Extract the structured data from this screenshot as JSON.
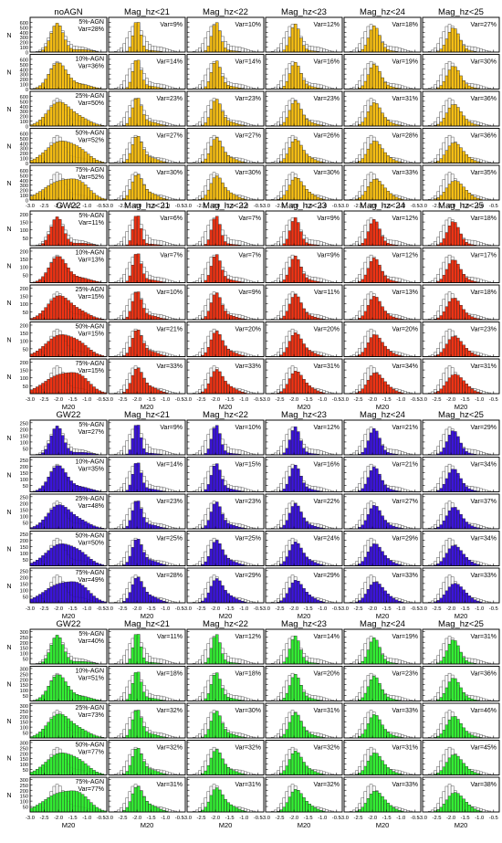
{
  "figure": {
    "y_label": "N",
    "x_label": "M20",
    "x_ticks": [
      "-3.0",
      "-2.5",
      "-2.0",
      "-1.5",
      "-1.0",
      "-0.5"
    ],
    "column_titles": [
      "Mag_hz<21",
      "Mag_hz<22",
      "Mag_hz<23",
      "Mag_hz<24",
      "Mag_hz<25"
    ],
    "row_labels": [
      "5%-AGN",
      "10%-AGN",
      "25%-AGN",
      "50%-AGN",
      "75%-AGN"
    ],
    "colors": {
      "outline": "#000000",
      "empty_bar": "#ffffff"
    }
  },
  "chart_data": [
    {
      "type": "bar",
      "block_title": "noAGN",
      "color": "#f5b800",
      "y_ticks": [
        "0",
        "100",
        "200",
        "300",
        "400",
        "500",
        "600"
      ],
      "ylim": [
        0,
        700
      ],
      "xlim": [
        -3.0,
        -0.3
      ],
      "var_labels": [
        [
          "Var=28%",
          "Var=9%",
          "Var=10%",
          "Var=12%",
          "Var=18%",
          "Var=27%"
        ],
        [
          "Var=36%",
          "Var=14%",
          "Var=14%",
          "Var=16%",
          "Var=19%",
          "Var=30%"
        ],
        [
          "Var=50%",
          "Var=23%",
          "Var=23%",
          "Var=23%",
          "Var=31%",
          "Var=36%"
        ],
        [
          "Var=52%",
          "Var=27%",
          "Var=27%",
          "Var=26%",
          "Var=28%",
          "Var=36%"
        ],
        [
          "Var=52%",
          "Var=30%",
          "Var=30%",
          "Var=30%",
          "Var=33%",
          "Var=35%"
        ]
      ]
    },
    {
      "type": "bar",
      "block_title": "GW22",
      "color": "#ee2200",
      "y_ticks": [
        "50",
        "100",
        "150",
        "200"
      ],
      "ylim": [
        0,
        220
      ],
      "xlim": [
        -3.0,
        -0.3
      ],
      "var_labels": [
        [
          "Var=11%",
          "Var=6%",
          "Var=7%",
          "Var=9%",
          "Var=12%",
          "Var=18%"
        ],
        [
          "Var=13%",
          "Var=7%",
          "Var=7%",
          "Var=9%",
          "Var=12%",
          "Var=17%"
        ],
        [
          "Var=15%",
          "Var=10%",
          "Var=9%",
          "Var=11%",
          "Var=13%",
          "Var=18%"
        ],
        [
          "Var=15%",
          "Var=21%",
          "Var=20%",
          "Var=20%",
          "Var=20%",
          "Var=23%"
        ],
        [
          "Var=15%",
          "Var=33%",
          "Var=33%",
          "Var=31%",
          "Var=34%",
          "Var=31%"
        ]
      ]
    },
    {
      "type": "bar",
      "block_title": "GW22",
      "color": "#2a00d8",
      "y_ticks": [
        "50",
        "100",
        "150",
        "200",
        "250"
      ],
      "ylim": [
        0,
        270
      ],
      "xlim": [
        -3.0,
        -0.3
      ],
      "var_labels": [
        [
          "Var=27%",
          "Var=9%",
          "Var=10%",
          "Var=12%",
          "Var=21%",
          "Var=29%"
        ],
        [
          "Var=35%",
          "Var=14%",
          "Var=15%",
          "Var=16%",
          "Var=21%",
          "Var=34%"
        ],
        [
          "Var=48%",
          "Var=23%",
          "Var=23%",
          "Var=22%",
          "Var=27%",
          "Var=37%"
        ],
        [
          "Var=50%",
          "Var=25%",
          "Var=25%",
          "Var=24%",
          "Var=29%",
          "Var=34%"
        ],
        [
          "Var=49%",
          "Var=28%",
          "Var=29%",
          "Var=29%",
          "Var=33%",
          "Var=33%"
        ]
      ]
    },
    {
      "type": "bar",
      "block_title": "GW22",
      "color": "#22ee22",
      "y_ticks": [
        "50",
        "100",
        "150",
        "200",
        "250",
        "300"
      ],
      "ylim": [
        0,
        320
      ],
      "xlim": [
        -3.0,
        -0.3
      ],
      "var_labels": [
        [
          "Var=40%",
          "Var=11%",
          "Var=12%",
          "Var=14%",
          "Var=19%",
          "Var=31%"
        ],
        [
          "Var=51%",
          "Var=18%",
          "Var=18%",
          "Var=20%",
          "Var=23%",
          "Var=36%"
        ],
        [
          "Var=73%",
          "Var=32%",
          "Var=30%",
          "Var=31%",
          "Var=33%",
          "Var=46%"
        ],
        [
          "Var=77%",
          "Var=32%",
          "Var=32%",
          "Var=32%",
          "Var=31%",
          "Var=45%"
        ],
        [
          "Var=77%",
          "Var=31%",
          "Var=31%",
          "Var=32%",
          "Var=33%",
          "Var=38%"
        ]
      ]
    }
  ]
}
